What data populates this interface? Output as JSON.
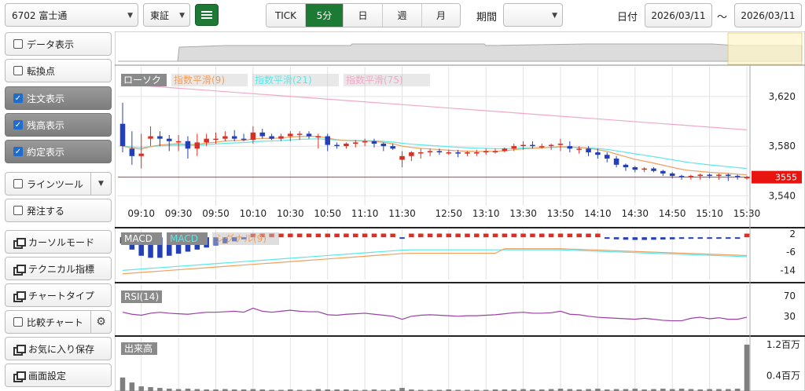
{
  "toolbar": {
    "stock": "6702 富士通",
    "market": "東証",
    "timeframes": [
      "TICK",
      "5分",
      "日",
      "週",
      "月"
    ],
    "active_timeframe": "5分",
    "period_label": "期間",
    "period_value": "",
    "date_label": "日付",
    "date_from": "2026/03/11",
    "date_sep": "～",
    "date_to": "2026/03/11"
  },
  "sidebar": {
    "data_display": "データ表示",
    "turning_point": "転換点",
    "order_display": "注文表示",
    "position_display": "残高表示",
    "execution_display": "約定表示",
    "line_tool": "ラインツール",
    "order": "発注する",
    "cursor_mode": "カーソルモード",
    "technical": "テクニカル指標",
    "chart_type": "チャートタイプ",
    "compare": "比較チャート",
    "favorites": "お気に入り保存",
    "screen_settings": "画面設定"
  },
  "chart": {
    "price_legend": [
      "ローソク",
      "指数平滑(9)",
      "指数平滑(21)",
      "指数平滑(75)"
    ],
    "price_ticks": [
      "3,620",
      "3,580",
      "3,540"
    ],
    "current_price": "3555",
    "time_labels": [
      "09:10",
      "09:30",
      "09:50",
      "10:10",
      "10:30",
      "10:50",
      "11:10",
      "11:30",
      "12:50",
      "13:10",
      "13:30",
      "13:50",
      "14:10",
      "14:30",
      "14:50",
      "15:10",
      "15:30"
    ],
    "macd_legend": [
      "MACD",
      "MACD",
      "シグナル(9)"
    ],
    "macd_ticks": [
      "2",
      "-6",
      "-14"
    ],
    "rsi_legend": "RSI(14)",
    "rsi_ticks": [
      "70",
      "30"
    ],
    "volume_legend": "出来高",
    "volume_ticks": [
      "1.2百万",
      "0.4百万"
    ],
    "colors": {
      "up": "#d93025",
      "down": "#2340b8",
      "ema9": "#f0a060",
      "ema21": "#5ce8e8",
      "ema75": "#f2a8c8",
      "rsi": "#9b3fa6",
      "volume": "#7f7f7f"
    }
  },
  "chart_data": {
    "type": "candlestick",
    "title": "6702 富士通",
    "x": [
      "09:00",
      "09:05",
      "09:10",
      "09:15",
      "09:20",
      "09:25",
      "09:30",
      "09:35",
      "09:40",
      "09:45",
      "09:50",
      "09:55",
      "10:00",
      "10:05",
      "10:10",
      "10:15",
      "10:20",
      "10:25",
      "10:30",
      "10:35",
      "10:40",
      "10:45",
      "10:50",
      "10:55",
      "11:00",
      "11:05",
      "11:10",
      "11:15",
      "11:20",
      "11:25",
      "11:30",
      "12:30",
      "12:35",
      "12:40",
      "12:45",
      "12:50",
      "12:55",
      "13:00",
      "13:05",
      "13:10",
      "13:15",
      "13:20",
      "13:25",
      "13:30",
      "13:35",
      "13:40",
      "13:45",
      "13:50",
      "13:55",
      "14:00",
      "14:05",
      "14:10",
      "14:15",
      "14:20",
      "14:25",
      "14:30",
      "14:35",
      "14:40",
      "14:45",
      "14:50",
      "14:55",
      "15:00",
      "15:05",
      "15:10",
      "15:15",
      "15:20",
      "15:25",
      "15:30"
    ],
    "open": [
      3598,
      3578,
      3572,
      3586,
      3588,
      3586,
      3584,
      3584,
      3578,
      3583,
      3586,
      3586,
      3588,
      3586,
      3585,
      3591,
      3588,
      3586,
      3588,
      3590,
      3590,
      3588,
      3588,
      3581,
      3580,
      3582,
      3583,
      3584,
      3582,
      3580,
      3569,
      3572,
      3575,
      3575,
      3576,
      3575,
      3575,
      3574,
      3575,
      3575,
      3576,
      3576,
      3578,
      3580,
      3581,
      3580,
      3580,
      3581,
      3580,
      3578,
      3578,
      3575,
      3573,
      3570,
      3565,
      3563,
      3561,
      3562,
      3560,
      3558,
      3556,
      3555,
      3556,
      3557,
      3556,
      3557,
      3556,
      3555
    ],
    "high": [
      3615,
      3592,
      3590,
      3596,
      3592,
      3589,
      3589,
      3588,
      3590,
      3590,
      3591,
      3592,
      3593,
      3590,
      3596,
      3594,
      3590,
      3590,
      3592,
      3592,
      3592,
      3590,
      3590,
      3583,
      3583,
      3585,
      3586,
      3586,
      3583,
      3582,
      3576,
      3576,
      3578,
      3578,
      3578,
      3577,
      3577,
      3576,
      3577,
      3578,
      3578,
      3579,
      3582,
      3584,
      3584,
      3582,
      3582,
      3586,
      3584,
      3580,
      3580,
      3578,
      3575,
      3572,
      3566,
      3564,
      3563,
      3563,
      3561,
      3559,
      3557,
      3557,
      3558,
      3558,
      3558,
      3558,
      3557,
      3556
    ],
    "low": [
      3575,
      3565,
      3562,
      3580,
      3580,
      3576,
      3576,
      3570,
      3572,
      3580,
      3582,
      3584,
      3584,
      3584,
      3582,
      3586,
      3585,
      3584,
      3584,
      3585,
      3586,
      3578,
      3576,
      3578,
      3578,
      3579,
      3580,
      3579,
      3576,
      3577,
      3563,
      3568,
      3570,
      3572,
      3573,
      3573,
      3571,
      3572,
      3572,
      3573,
      3574,
      3575,
      3576,
      3577,
      3578,
      3578,
      3577,
      3576,
      3575,
      3574,
      3572,
      3570,
      3567,
      3563,
      3560,
      3559,
      3559,
      3559,
      3556,
      3554,
      3553,
      3553,
      3553,
      3554,
      3553,
      3552,
      3553,
      3553
    ],
    "close": [
      3580,
      3572,
      3574,
      3588,
      3586,
      3584,
      3584,
      3578,
      3583,
      3586,
      3586,
      3588,
      3586,
      3585,
      3591,
      3588,
      3586,
      3588,
      3590,
      3590,
      3588,
      3588,
      3581,
      3580,
      3582,
      3583,
      3584,
      3582,
      3580,
      3578,
      3572,
      3575,
      3575,
      3576,
      3575,
      3575,
      3574,
      3575,
      3575,
      3576,
      3576,
      3578,
      3580,
      3581,
      3580,
      3580,
      3581,
      3582,
      3578,
      3578,
      3575,
      3573,
      3570,
      3565,
      3563,
      3561,
      3562,
      3560,
      3558,
      3556,
      3555,
      3556,
      3557,
      3556,
      3557,
      3556,
      3555,
      3555
    ],
    "volume": [
      0.35,
      0.22,
      0.12,
      0.1,
      0.08,
      0.06,
      0.05,
      0.06,
      0.05,
      0.04,
      0.04,
      0.05,
      0.04,
      0.04,
      0.05,
      0.04,
      0.03,
      0.03,
      0.04,
      0.03,
      0.03,
      0.05,
      0.04,
      0.04,
      0.04,
      0.03,
      0.03,
      0.04,
      0.03,
      0.04,
      0.08,
      0.04,
      0.03,
      0.03,
      0.03,
      0.04,
      0.03,
      0.03,
      0.03,
      0.03,
      0.04,
      0.04,
      0.04,
      0.05,
      0.04,
      0.04,
      0.05,
      0.06,
      0.05,
      0.04,
      0.05,
      0.06,
      0.04,
      0.05,
      0.05,
      0.06,
      0.04,
      0.05,
      0.06,
      0.05,
      0.06,
      0.05,
      0.04,
      0.05,
      0.05,
      0.05,
      0.06,
      1.2
    ],
    "rsi": [
      38,
      34,
      32,
      36,
      38,
      36,
      35,
      34,
      36,
      38,
      38,
      39,
      40,
      38,
      46,
      40,
      38,
      40,
      42,
      40,
      39,
      39,
      33,
      32,
      34,
      35,
      36,
      34,
      32,
      30,
      24,
      30,
      32,
      33,
      32,
      31,
      30,
      31,
      31,
      32,
      33,
      35,
      37,
      38,
      36,
      36,
      37,
      40,
      34,
      33,
      30,
      28,
      27,
      26,
      25,
      24,
      26,
      24,
      22,
      21,
      21,
      26,
      28,
      25,
      27,
      24,
      24,
      28
    ],
    "macd_hist": [
      -3,
      -6,
      -9,
      -10,
      -10,
      -9,
      -8,
      -7,
      -6,
      -5,
      -4,
      -3,
      -2,
      -1,
      0,
      1,
      1,
      1,
      2,
      2,
      2,
      2,
      1,
      1,
      1,
      1,
      1,
      1,
      0.5,
      0.3,
      -0.3,
      0.3,
      0.5,
      0.6,
      0.7,
      0.8,
      0.8,
      1,
      1,
      1,
      1.2,
      1.3,
      1.5,
      1.6,
      1.6,
      1.5,
      1.5,
      1.4,
      1.1,
      0.8,
      0.5,
      0,
      -0.5,
      -1,
      -1.2,
      -1.3,
      -1.3,
      -1.2,
      -1.1,
      -1,
      -0.8,
      -0.6,
      -0.5,
      -0.4,
      -0.3,
      -0.2,
      -0.1,
      0
    ],
    "ylim_price": [
      3532,
      3644
    ]
  }
}
